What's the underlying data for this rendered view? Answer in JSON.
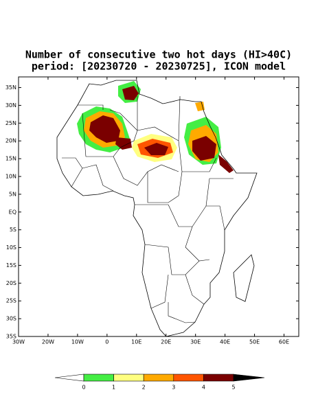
{
  "chart_data": {
    "type": "map",
    "title": "Number of consecutive two hot days (HI>40C)",
    "subtitle": "period: [20230720 - 20230725], ICON model",
    "xlim": [
      -30,
      65
    ],
    "ylim": [
      -35,
      38
    ],
    "xticks": [
      {
        "value": -30,
        "label": "30W"
      },
      {
        "value": -20,
        "label": "20W"
      },
      {
        "value": -10,
        "label": "10W"
      },
      0,
      {
        "value": 10,
        "label": "10E"
      },
      {
        "value": 20,
        "label": "20E"
      },
      {
        "value": 30,
        "label": "30E"
      },
      {
        "value": 40,
        "label": "40E"
      },
      {
        "value": 50,
        "label": "50E"
      },
      {
        "value": 60,
        "label": "60E"
      }
    ],
    "yticks": [
      {
        "value": 35,
        "label": "35N"
      },
      {
        "value": 30,
        "label": "30N"
      },
      {
        "value": 25,
        "label": "25N"
      },
      {
        "value": 20,
        "label": "20N"
      },
      {
        "value": 15,
        "label": "15N"
      },
      {
        "value": 10,
        "label": "10N"
      },
      {
        "value": 5,
        "label": "5N"
      },
      {
        "value": 0,
        "label": "EQ"
      },
      {
        "value": -5,
        "label": "5S"
      },
      {
        "value": -10,
        "label": "10S"
      },
      {
        "value": -15,
        "label": "15S"
      },
      {
        "value": -20,
        "label": "20S"
      },
      {
        "value": -25,
        "label": "25S"
      },
      {
        "value": -30,
        "label": "30S"
      },
      {
        "value": -35,
        "label": "35S"
      }
    ],
    "colorbar": {
      "boundaries": [
        0,
        1,
        2,
        3,
        4,
        5
      ],
      "colors": [
        "#ffffff",
        "#44ee44",
        "#ffff80",
        "#ffaa00",
        "#ff5500",
        "#7a0000",
        "#aa0066"
      ]
    }
  }
}
